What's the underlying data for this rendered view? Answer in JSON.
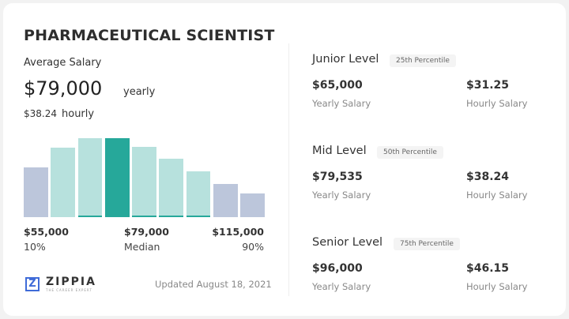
{
  "title": "PHARMACEUTICAL SCIENTIST",
  "average": {
    "label": "Average Salary",
    "yearly_value": "$79,000",
    "yearly_unit": "yearly",
    "hourly_value": "$38.24",
    "hourly_unit": "hourly"
  },
  "chart_data": {
    "type": "bar",
    "relative_heights": [
      62,
      87,
      99,
      99,
      88,
      73,
      57,
      42,
      30
    ],
    "highlight_index": 3,
    "colors": {
      "outer": "#bcc6db",
      "inner": "#b7e1dd",
      "median": "#26a89a"
    },
    "labels": [
      {
        "value": "$55,000",
        "caption": "10%"
      },
      {
        "value": "$79,000",
        "caption": "Median"
      },
      {
        "value": "$115,000",
        "caption": "90%"
      }
    ]
  },
  "brand": {
    "name": "ZIPPIA",
    "tagline": "THE CAREER EXPERT"
  },
  "updated": "Updated August 18, 2021",
  "levels": [
    {
      "name": "Junior Level",
      "percentile": "25th Percentile",
      "yearly": "$65,000",
      "yearly_label": "Yearly Salary",
      "hourly": "$31.25",
      "hourly_label": "Hourly Salary"
    },
    {
      "name": "Mid Level",
      "percentile": "50th Percentile",
      "yearly": "$79,535",
      "yearly_label": "Yearly Salary",
      "hourly": "$38.24",
      "hourly_label": "Hourly Salary"
    },
    {
      "name": "Senior Level",
      "percentile": "75th Percentile",
      "yearly": "$96,000",
      "yearly_label": "Yearly Salary",
      "hourly": "$46.15",
      "hourly_label": "Hourly Salary"
    }
  ]
}
